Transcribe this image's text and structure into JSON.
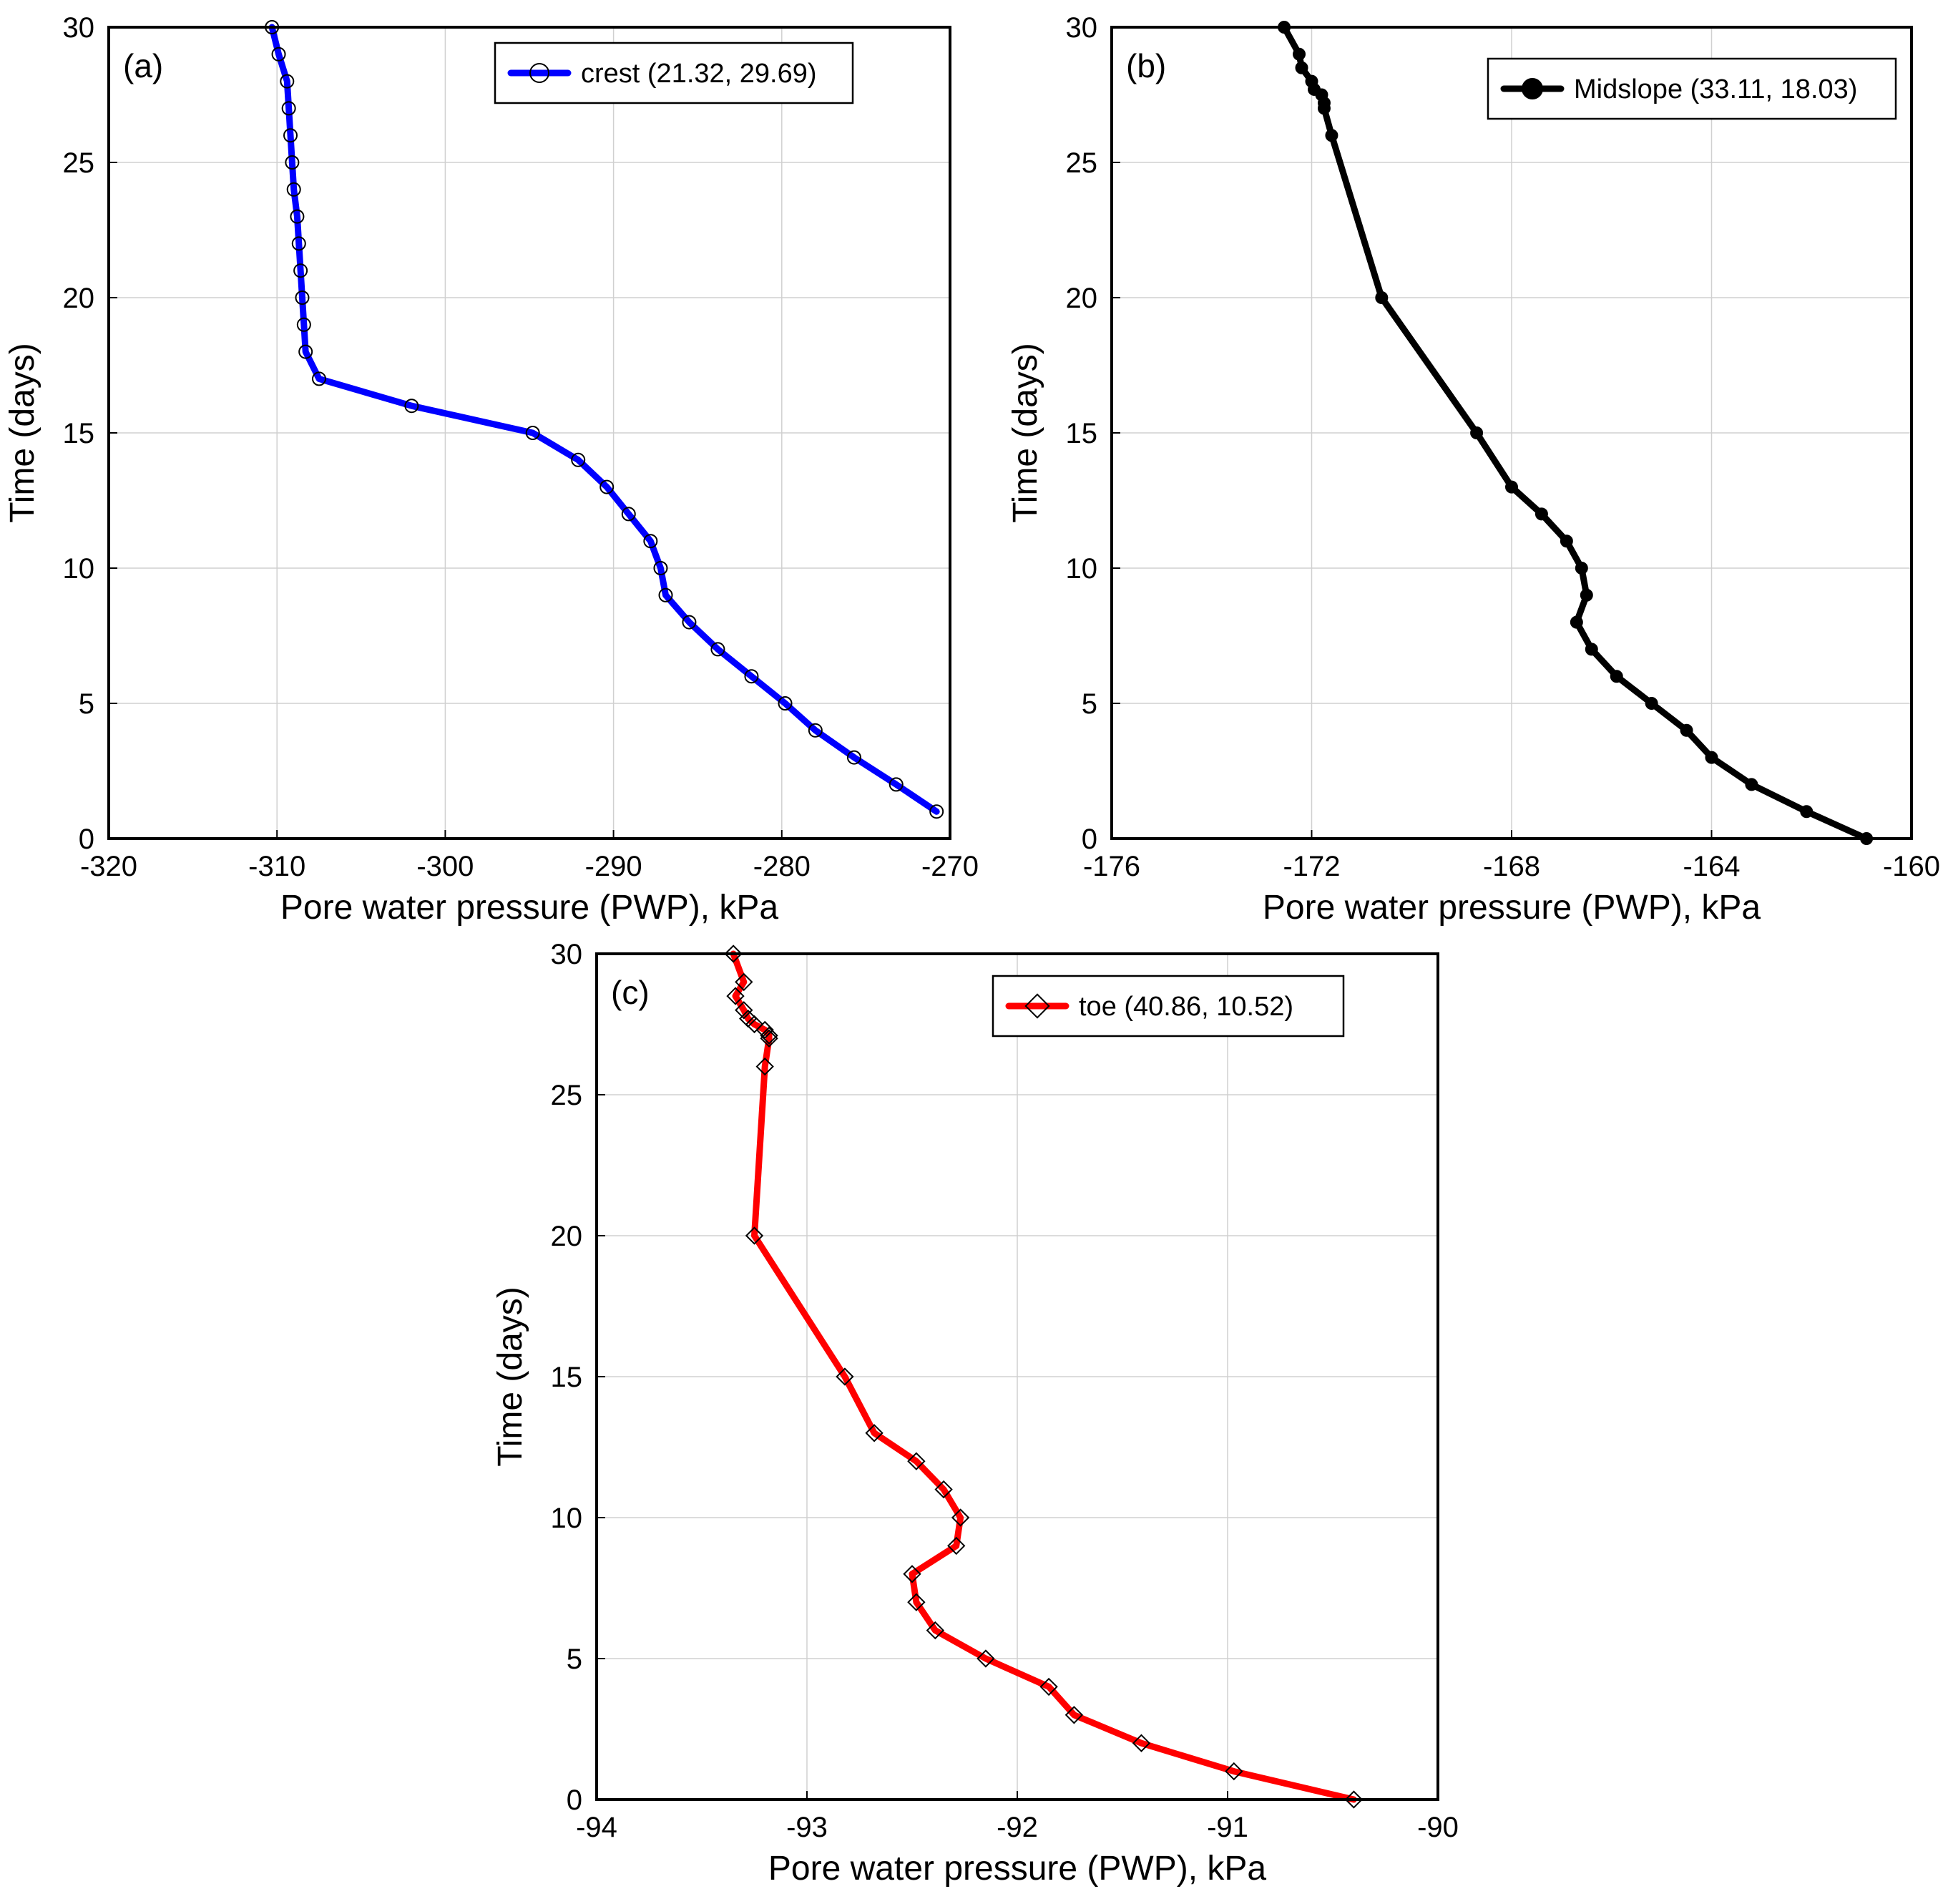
{
  "chart_data": [
    {
      "type": "line",
      "panel_label": "(a)",
      "xlabel": "Pore water pressure (PWP), kPa",
      "ylabel": "Time (days)",
      "xlim": [
        -320,
        -270
      ],
      "ylim": [
        0,
        30
      ],
      "xticks": [
        -320,
        -310,
        -300,
        -290,
        -280,
        -270
      ],
      "yticks": [
        0,
        5,
        10,
        15,
        20,
        25,
        30
      ],
      "grid": true,
      "legend_position": "top-right",
      "colors": {
        "line": "#0000ff",
        "marker_edge": "#000000",
        "marker_fill": "none"
      },
      "marker": "circle-open",
      "series": [
        {
          "name": "crest (21.32, 29.69)",
          "points": [
            {
              "x": -310.3,
              "y": 30
            },
            {
              "x": -309.9,
              "y": 29
            },
            {
              "x": -309.4,
              "y": 28
            },
            {
              "x": -309.3,
              "y": 27
            },
            {
              "x": -309.2,
              "y": 26
            },
            {
              "x": -309.1,
              "y": 25
            },
            {
              "x": -309.0,
              "y": 24
            },
            {
              "x": -308.8,
              "y": 23
            },
            {
              "x": -308.7,
              "y": 22
            },
            {
              "x": -308.6,
              "y": 21
            },
            {
              "x": -308.5,
              "y": 20
            },
            {
              "x": -308.4,
              "y": 19
            },
            {
              "x": -308.3,
              "y": 18
            },
            {
              "x": -307.5,
              "y": 17
            },
            {
              "x": -302.0,
              "y": 16
            },
            {
              "x": -294.8,
              "y": 15
            },
            {
              "x": -292.1,
              "y": 14
            },
            {
              "x": -290.4,
              "y": 13
            },
            {
              "x": -289.1,
              "y": 12
            },
            {
              "x": -287.8,
              "y": 11
            },
            {
              "x": -287.2,
              "y": 10
            },
            {
              "x": -286.9,
              "y": 9
            },
            {
              "x": -285.5,
              "y": 8
            },
            {
              "x": -283.8,
              "y": 7
            },
            {
              "x": -281.8,
              "y": 6
            },
            {
              "x": -279.8,
              "y": 5
            },
            {
              "x": -278.0,
              "y": 4
            },
            {
              "x": -275.7,
              "y": 3
            },
            {
              "x": -273.2,
              "y": 2
            },
            {
              "x": -270.8,
              "y": 1
            }
          ]
        }
      ]
    },
    {
      "type": "line",
      "panel_label": "(b)",
      "xlabel": "Pore water pressure (PWP), kPa",
      "ylabel": "Time (days)",
      "xlim": [
        -176,
        -160
      ],
      "ylim": [
        0,
        30
      ],
      "xticks": [
        -176,
        -172,
        -168,
        -164,
        -160
      ],
      "yticks": [
        0,
        5,
        10,
        15,
        20,
        25,
        30
      ],
      "grid": true,
      "legend_position": "top-right",
      "colors": {
        "line": "#000000",
        "marker_edge": "#000000",
        "marker_fill": "#000000"
      },
      "marker": "circle-filled",
      "series": [
        {
          "name": "Midslope (33.11, 18.03)",
          "points": [
            {
              "x": -172.55,
              "y": 30
            },
            {
              "x": -172.25,
              "y": 29
            },
            {
              "x": -172.2,
              "y": 28.5
            },
            {
              "x": -172.0,
              "y": 28
            },
            {
              "x": -171.95,
              "y": 27.7
            },
            {
              "x": -171.8,
              "y": 27.5
            },
            {
              "x": -171.75,
              "y": 27.2
            },
            {
              "x": -171.75,
              "y": 27
            },
            {
              "x": -171.6,
              "y": 26
            },
            {
              "x": -170.6,
              "y": 20
            },
            {
              "x": -168.7,
              "y": 15
            },
            {
              "x": -168.0,
              "y": 13
            },
            {
              "x": -167.4,
              "y": 12
            },
            {
              "x": -166.9,
              "y": 11
            },
            {
              "x": -166.6,
              "y": 10
            },
            {
              "x": -166.5,
              "y": 9
            },
            {
              "x": -166.7,
              "y": 8
            },
            {
              "x": -166.4,
              "y": 7
            },
            {
              "x": -165.9,
              "y": 6
            },
            {
              "x": -165.2,
              "y": 5
            },
            {
              "x": -164.5,
              "y": 4
            },
            {
              "x": -164.0,
              "y": 3
            },
            {
              "x": -163.2,
              "y": 2
            },
            {
              "x": -162.1,
              "y": 1
            },
            {
              "x": -160.9,
              "y": 0
            }
          ]
        }
      ]
    },
    {
      "type": "line",
      "panel_label": "(c)",
      "xlabel": "Pore water pressure (PWP), kPa",
      "ylabel": "Time (days)",
      "xlim": [
        -94,
        -90
      ],
      "ylim": [
        0,
        30
      ],
      "xticks": [
        -94,
        -93,
        -92,
        -91,
        -90
      ],
      "yticks": [
        0,
        5,
        10,
        15,
        20,
        25,
        30
      ],
      "grid": true,
      "legend_position": "top-right",
      "colors": {
        "line": "#ff0000",
        "marker_edge": "#000000",
        "marker_fill": "none"
      },
      "marker": "diamond-open",
      "series": [
        {
          "name": "toe (40.86, 10.52)",
          "points": [
            {
              "x": -93.35,
              "y": 30
            },
            {
              "x": -93.3,
              "y": 29
            },
            {
              "x": -93.34,
              "y": 28.5
            },
            {
              "x": -93.3,
              "y": 28
            },
            {
              "x": -93.28,
              "y": 27.7
            },
            {
              "x": -93.25,
              "y": 27.5
            },
            {
              "x": -93.2,
              "y": 27.3
            },
            {
              "x": -93.18,
              "y": 27.1
            },
            {
              "x": -93.18,
              "y": 27
            },
            {
              "x": -93.2,
              "y": 26
            },
            {
              "x": -93.25,
              "y": 20
            },
            {
              "x": -92.82,
              "y": 15
            },
            {
              "x": -92.68,
              "y": 13
            },
            {
              "x": -92.48,
              "y": 12
            },
            {
              "x": -92.35,
              "y": 11
            },
            {
              "x": -92.27,
              "y": 10
            },
            {
              "x": -92.29,
              "y": 9
            },
            {
              "x": -92.5,
              "y": 8
            },
            {
              "x": -92.48,
              "y": 7
            },
            {
              "x": -92.39,
              "y": 6
            },
            {
              "x": -92.15,
              "y": 5
            },
            {
              "x": -91.85,
              "y": 4
            },
            {
              "x": -91.73,
              "y": 3
            },
            {
              "x": -91.41,
              "y": 2
            },
            {
              "x": -90.97,
              "y": 1
            },
            {
              "x": -90.4,
              "y": 0
            }
          ]
        }
      ]
    }
  ]
}
